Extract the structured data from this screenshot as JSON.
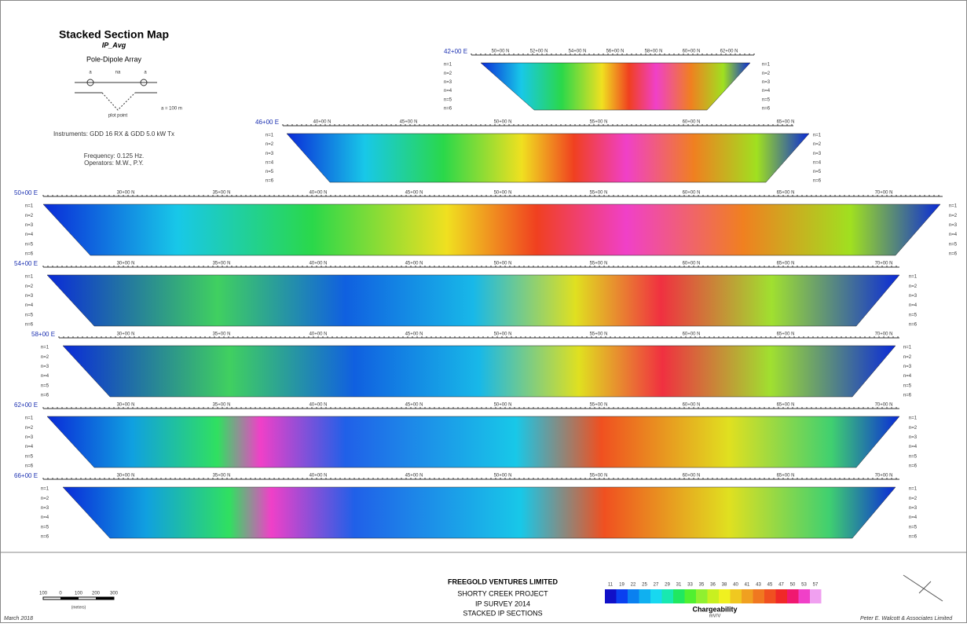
{
  "header": {
    "title": "Stacked Section Map",
    "subtitle": "IP_Avg",
    "array": "Pole-Dipole Array",
    "diagram": {
      "a_left": "a",
      "na": "na",
      "a_right": "a",
      "plot_point": "plot point",
      "spacing": "a = 100 m"
    },
    "instruments": "Instruments: GDD 16 RX & GDD 5.0 kW Tx",
    "frequency": "Frequency: 0.125 Hz.",
    "operators": "Operators: M.W., P.Y."
  },
  "levels": [
    "n=1",
    "n=2",
    "n=3",
    "n=4",
    "n=5",
    "n=6"
  ],
  "sections": [
    {
      "label": "42+00 E",
      "ticks": [
        "50+00 N",
        "52+00 N",
        "54+00 N",
        "56+00 N",
        "58+00 N",
        "60+00 N",
        "62+00 N"
      ]
    },
    {
      "label": "46+00 E",
      "ticks": [
        "40+00 N",
        "45+00 N",
        "50+00 N",
        "55+00 N",
        "60+00 N",
        "65+00 N"
      ]
    },
    {
      "label": "50+00 E",
      "ticks": [
        "30+00 N",
        "35+00 N",
        "40+00 N",
        "45+00 N",
        "50+00 N",
        "55+00 N",
        "60+00 N",
        "65+00 N",
        "70+00 N"
      ]
    },
    {
      "label": "54+00 E",
      "ticks": [
        "30+00 N",
        "35+00 N",
        "40+00 N",
        "45+00 N",
        "50+00 N",
        "55+00 N",
        "60+00 N",
        "65+00 N",
        "70+00 N"
      ]
    },
    {
      "label": "58+00 E",
      "ticks": [
        "30+00 N",
        "35+00 N",
        "40+00 N",
        "45+00 N",
        "50+00 N",
        "55+00 N",
        "60+00 N",
        "65+00 N",
        "70+00 N"
      ]
    },
    {
      "label": "62+00 E",
      "ticks": [
        "30+00 N",
        "35+00 N",
        "40+00 N",
        "45+00 N",
        "50+00 N",
        "55+00 N",
        "60+00 N",
        "65+00 N",
        "70+00 N"
      ]
    },
    {
      "label": "66+00 E",
      "ticks": [
        "30+00 N",
        "35+00 N",
        "40+00 N",
        "45+00 N",
        "50+00 N",
        "55+00 N",
        "60+00 N",
        "65+00 N",
        "70+00 N"
      ]
    }
  ],
  "legend": {
    "values": [
      "11",
      "19",
      "22",
      "25",
      "27",
      "29",
      "31",
      "33",
      "35",
      "36",
      "38",
      "40",
      "41",
      "43",
      "45",
      "47",
      "50",
      "53",
      "57"
    ],
    "title": "Chargeability",
    "unit": "mV/V"
  },
  "scale_bar": {
    "labels": [
      "100",
      "0",
      "100",
      "200",
      "300"
    ],
    "unit": "(meters)"
  },
  "title_block": {
    "company": "FREEGOLD VENTURES LIMITED",
    "project": "SHORTY CREEK PROJECT",
    "survey": "IP SURVEY 2014",
    "sheet": "STACKED IP SECTIONS"
  },
  "date": "March 2018",
  "author": "Peter E. Walcott & Associates Limited"
}
